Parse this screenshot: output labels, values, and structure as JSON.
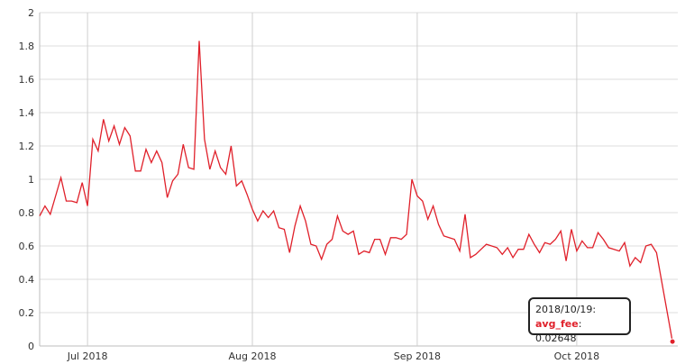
{
  "chart_data": {
    "type": "line",
    "title": "",
    "xlabel": "",
    "ylabel": "",
    "ylim": [
      0,
      2
    ],
    "y_ticks": [
      "0",
      "0.2",
      "0.4",
      "0.6",
      "0.8",
      "1",
      "1.2",
      "1.4",
      "1.6",
      "1.8",
      "2"
    ],
    "x_ticks": [
      {
        "date": "2018-07-01",
        "label": "Jul 2018"
      },
      {
        "date": "2018-08-01",
        "label": "Aug 2018"
      },
      {
        "date": "2018-09-01",
        "label": "Sep 2018"
      },
      {
        "date": "2018-10-01",
        "label": "Oct 2018"
      }
    ],
    "x_range": [
      "2018-06-22",
      "2018-10-20"
    ],
    "grid": true,
    "line_color": "#e0202a",
    "series": [
      {
        "name": "avg_fee",
        "points": [
          [
            "2018-06-22",
            0.78
          ],
          [
            "2018-06-23",
            0.84
          ],
          [
            "2018-06-24",
            0.79
          ],
          [
            "2018-06-25",
            0.9
          ],
          [
            "2018-06-26",
            1.01
          ],
          [
            "2018-06-27",
            0.87
          ],
          [
            "2018-06-28",
            0.87
          ],
          [
            "2018-06-29",
            0.86
          ],
          [
            "2018-06-30",
            0.98
          ],
          [
            "2018-07-01",
            0.84
          ],
          [
            "2018-07-02",
            1.24
          ],
          [
            "2018-07-03",
            1.17
          ],
          [
            "2018-07-04",
            1.36
          ],
          [
            "2018-07-05",
            1.23
          ],
          [
            "2018-07-06",
            1.32
          ],
          [
            "2018-07-07",
            1.21
          ],
          [
            "2018-07-08",
            1.31
          ],
          [
            "2018-07-09",
            1.26
          ],
          [
            "2018-07-10",
            1.05
          ],
          [
            "2018-07-11",
            1.05
          ],
          [
            "2018-07-12",
            1.18
          ],
          [
            "2018-07-13",
            1.1
          ],
          [
            "2018-07-14",
            1.17
          ],
          [
            "2018-07-15",
            1.1
          ],
          [
            "2018-07-16",
            0.89
          ],
          [
            "2018-07-17",
            0.99
          ],
          [
            "2018-07-18",
            1.03
          ],
          [
            "2018-07-19",
            1.21
          ],
          [
            "2018-07-20",
            1.07
          ],
          [
            "2018-07-21",
            1.06
          ],
          [
            "2018-07-22",
            1.83
          ],
          [
            "2018-07-23",
            1.24
          ],
          [
            "2018-07-24",
            1.06
          ],
          [
            "2018-07-25",
            1.17
          ],
          [
            "2018-07-26",
            1.07
          ],
          [
            "2018-07-27",
            1.03
          ],
          [
            "2018-07-28",
            1.2
          ],
          [
            "2018-07-29",
            0.96
          ],
          [
            "2018-07-30",
            0.99
          ],
          [
            "2018-07-31",
            0.91
          ],
          [
            "2018-08-01",
            0.82
          ],
          [
            "2018-08-02",
            0.75
          ],
          [
            "2018-08-03",
            0.81
          ],
          [
            "2018-08-04",
            0.77
          ],
          [
            "2018-08-05",
            0.81
          ],
          [
            "2018-08-06",
            0.71
          ],
          [
            "2018-08-07",
            0.7
          ],
          [
            "2018-08-08",
            0.56
          ],
          [
            "2018-08-09",
            0.72
          ],
          [
            "2018-08-10",
            0.84
          ],
          [
            "2018-08-11",
            0.75
          ],
          [
            "2018-08-12",
            0.61
          ],
          [
            "2018-08-13",
            0.6
          ],
          [
            "2018-08-14",
            0.52
          ],
          [
            "2018-08-15",
            0.61
          ],
          [
            "2018-08-16",
            0.64
          ],
          [
            "2018-08-17",
            0.78
          ],
          [
            "2018-08-18",
            0.69
          ],
          [
            "2018-08-19",
            0.67
          ],
          [
            "2018-08-20",
            0.69
          ],
          [
            "2018-08-21",
            0.55
          ],
          [
            "2018-08-22",
            0.57
          ],
          [
            "2018-08-23",
            0.56
          ],
          [
            "2018-08-24",
            0.64
          ],
          [
            "2018-08-25",
            0.64
          ],
          [
            "2018-08-26",
            0.55
          ],
          [
            "2018-08-27",
            0.65
          ],
          [
            "2018-08-28",
            0.65
          ],
          [
            "2018-08-29",
            0.64
          ],
          [
            "2018-08-30",
            0.67
          ],
          [
            "2018-08-31",
            1.0
          ],
          [
            "2018-09-01",
            0.9
          ],
          [
            "2018-09-02",
            0.87
          ],
          [
            "2018-09-03",
            0.76
          ],
          [
            "2018-09-04",
            0.84
          ],
          [
            "2018-09-05",
            0.73
          ],
          [
            "2018-09-06",
            0.66
          ],
          [
            "2018-09-07",
            0.65
          ],
          [
            "2018-09-08",
            0.64
          ],
          [
            "2018-09-09",
            0.57
          ],
          [
            "2018-09-10",
            0.79
          ],
          [
            "2018-09-11",
            0.53
          ],
          [
            "2018-09-12",
            0.55
          ],
          [
            "2018-09-13",
            0.58
          ],
          [
            "2018-09-14",
            0.61
          ],
          [
            "2018-09-15",
            0.6
          ],
          [
            "2018-09-16",
            0.59
          ],
          [
            "2018-09-17",
            0.55
          ],
          [
            "2018-09-18",
            0.59
          ],
          [
            "2018-09-19",
            0.53
          ],
          [
            "2018-09-20",
            0.58
          ],
          [
            "2018-09-21",
            0.58
          ],
          [
            "2018-09-22",
            0.67
          ],
          [
            "2018-09-23",
            0.61
          ],
          [
            "2018-09-24",
            0.56
          ],
          [
            "2018-09-25",
            0.62
          ],
          [
            "2018-09-26",
            0.61
          ],
          [
            "2018-09-27",
            0.64
          ],
          [
            "2018-09-28",
            0.69
          ],
          [
            "2018-09-29",
            0.51
          ],
          [
            "2018-09-30",
            0.7
          ],
          [
            "2018-10-01",
            0.57
          ],
          [
            "2018-10-02",
            0.63
          ],
          [
            "2018-10-03",
            0.59
          ],
          [
            "2018-10-04",
            0.59
          ],
          [
            "2018-10-05",
            0.68
          ],
          [
            "2018-10-06",
            0.64
          ],
          [
            "2018-10-07",
            0.59
          ],
          [
            "2018-10-08",
            0.58
          ],
          [
            "2018-10-09",
            0.57
          ],
          [
            "2018-10-10",
            0.62
          ],
          [
            "2018-10-11",
            0.48
          ],
          [
            "2018-10-12",
            0.53
          ],
          [
            "2018-10-13",
            0.5
          ],
          [
            "2018-10-14",
            0.6
          ],
          [
            "2018-10-15",
            0.61
          ],
          [
            "2018-10-16",
            0.56
          ],
          [
            "2018-10-19",
            0.02648
          ]
        ]
      }
    ]
  },
  "tooltip": {
    "date": "2018/10/19:",
    "series_label": "avg_fee",
    "separator": ": ",
    "value": "0.02648"
  }
}
